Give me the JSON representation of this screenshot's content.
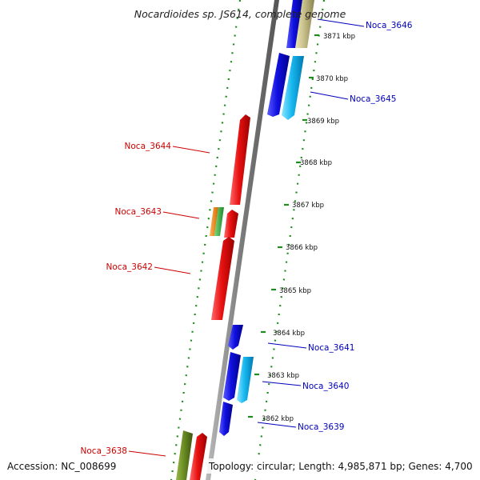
{
  "header": {
    "title": "Nocardioides sp. JS614, complete genome"
  },
  "footer": {
    "accession": "Accession: NC_008699",
    "topology": "Topology: circular; Length: 4,985,871 bp; Genes: 4,700"
  },
  "colors": {
    "backbone": "#8a8a8a",
    "dots": "#1e8c1e",
    "label_left": "#cc0000",
    "label_right": "#0000bb",
    "gene_red": "#e81010",
    "gene_blue": "#1010e0",
    "gene_cyan": "#18b8f0",
    "gene_olive": "#6b8e23",
    "gene_khaki": "#c8c08a",
    "gene_orange": "#ff8c00",
    "gene_green": "#3cb043"
  },
  "kbp_marks": [
    "3871 kbp",
    "3870 kbp",
    "3869 kbp",
    "3868 kbp",
    "3867 kbp",
    "3866 kbp",
    "3865 kbp",
    "3864 kbp",
    "3863 kbp",
    "3862 kbp"
  ],
  "gene_labels_left": [
    "Noca_3644",
    "Noca_3643",
    "Noca_3642",
    "Noca_3638"
  ],
  "gene_labels_right": [
    "Noca_3646",
    "Noca_3645",
    "Noca_3641",
    "Noca_3640",
    "Noca_3639"
  ]
}
